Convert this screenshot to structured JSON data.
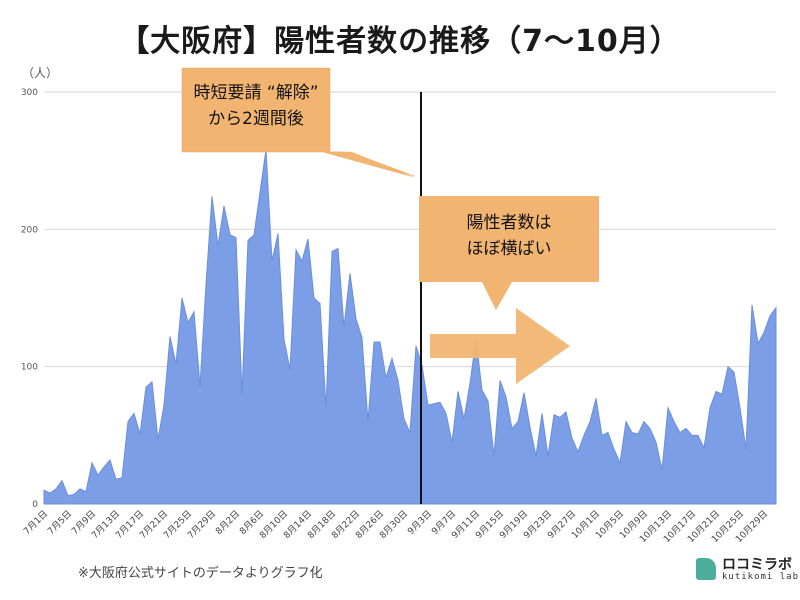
{
  "chart_data": {
    "type": "area",
    "title": "【大阪府】陽性者数の推移（7〜10月）",
    "ylabel": "（人）",
    "xlabel": "",
    "ylim": [
      0,
      300
    ],
    "yticks": [
      0,
      100,
      200,
      300
    ],
    "grid": true,
    "color": "#7b9ee6",
    "x": [
      "7月1日",
      "7月2日",
      "7月3日",
      "7月4日",
      "7月5日",
      "7月6日",
      "7月7日",
      "7月8日",
      "7月9日",
      "7月10日",
      "7月11日",
      "7月12日",
      "7月13日",
      "7月14日",
      "7月15日",
      "7月16日",
      "7月17日",
      "7月18日",
      "7月19日",
      "7月20日",
      "7月21日",
      "7月22日",
      "7月23日",
      "7月24日",
      "7月25日",
      "7月26日",
      "7月27日",
      "7月28日",
      "7月29日",
      "7月30日",
      "7月31日",
      "8月1日",
      "8月2日",
      "8月3日",
      "8月4日",
      "8月5日",
      "8月6日",
      "8月7日",
      "8月8日",
      "8月9日",
      "8月10日",
      "8月11日",
      "8月12日",
      "8月13日",
      "8月14日",
      "8月15日",
      "8月16日",
      "8月17日",
      "8月18日",
      "8月19日",
      "8月20日",
      "8月21日",
      "8月22日",
      "8月23日",
      "8月24日",
      "8月25日",
      "8月26日",
      "8月27日",
      "8月28日",
      "8月29日",
      "8月30日",
      "8月31日",
      "9月1日",
      "9月2日",
      "9月3日",
      "9月4日",
      "9月5日",
      "9月6日",
      "9月7日",
      "9月8日",
      "9月9日",
      "9月10日",
      "9月11日",
      "9月12日",
      "9月13日",
      "9月14日",
      "9月15日",
      "9月16日",
      "9月17日",
      "9月18日",
      "9月19日",
      "9月20日",
      "9月21日",
      "9月22日",
      "9月23日",
      "9月24日",
      "9月25日",
      "9月26日",
      "9月27日",
      "9月28日",
      "9月29日",
      "9月30日",
      "10月1日",
      "10月2日",
      "10月3日",
      "10月4日",
      "10月5日",
      "10月6日",
      "10月7日",
      "10月8日",
      "10月9日",
      "10月10日",
      "10月11日",
      "10月12日",
      "10月13日",
      "10月14日",
      "10月15日",
      "10月16日",
      "10月17日",
      "10月18日",
      "10月19日",
      "10月20日",
      "10月21日",
      "10月22日",
      "10月23日",
      "10月24日",
      "10月25日",
      "10月26日",
      "10月27日",
      "10月28日",
      "10月29日",
      "10月30日",
      "10月31日"
    ],
    "xtick_labels": [
      "7月1日",
      "7月5日",
      "7月9日",
      "7月13日",
      "7月17日",
      "7月21日",
      "7月25日",
      "7月29日",
      "8月2日",
      "8月6日",
      "8月10日",
      "8月14日",
      "8月18日",
      "8月22日",
      "8月26日",
      "8月30日",
      "9月3日",
      "9月7日",
      "9月11日",
      "9月15日",
      "9月19日",
      "9月23日",
      "9月27日",
      "10月1日",
      "10月5日",
      "10月9日",
      "10月13日",
      "10月17日",
      "10月21日",
      "10月25日",
      "10月29日"
    ],
    "values": [
      10,
      8,
      11,
      17,
      6,
      7,
      11,
      9,
      30,
      21,
      27,
      32,
      18,
      19,
      60,
      66,
      51,
      85,
      89,
      47,
      72,
      122,
      102,
      150,
      132,
      140,
      86,
      160,
      224,
      188,
      217,
      196,
      194,
      80,
      192,
      196,
      227,
      258,
      177,
      197,
      120,
      98,
      185,
      177,
      193,
      150,
      146,
      70,
      184,
      186,
      129,
      168,
      135,
      121,
      60,
      118,
      118,
      92,
      106,
      90,
      62,
      52,
      115,
      101,
      72,
      73,
      74,
      66,
      45,
      82,
      62,
      88,
      120,
      83,
      75,
      35,
      90,
      78,
      55,
      60,
      81,
      56,
      35,
      66,
      35,
      65,
      63,
      67,
      48,
      38,
      50,
      60,
      77,
      50,
      52,
      40,
      30,
      60,
      52,
      51,
      60,
      55,
      45,
      25,
      70,
      60,
      52,
      55,
      50,
      50,
      41,
      70,
      82,
      80,
      100,
      96,
      70,
      40,
      145,
      117,
      125,
      137,
      143
    ]
  },
  "annotations": {
    "callout1_line1": "時短要請 “解除”",
    "callout1_line2": "から2週間後",
    "callout2_line1": "陽性者数は",
    "callout2_line2": "ほぼ横ばい"
  },
  "footer": {
    "source": "※大阪府公式サイトのデータよりグラフ化",
    "logo_name": "ロコミラボ",
    "logo_sub": "kutikomi lab"
  }
}
